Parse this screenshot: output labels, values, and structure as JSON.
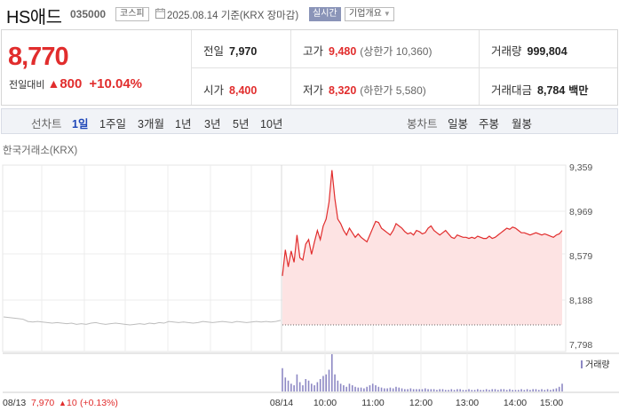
{
  "header": {
    "name": "HS애드",
    "code": "035000",
    "market": "코스피",
    "date": "2025.08.14 기준(KRX 장마감)",
    "realtime_label": "실시간",
    "overview_label": "기업개요"
  },
  "summary": {
    "price": "8,770",
    "change_label": "전일대비",
    "change_value": "800",
    "change_pct": "+10.04%",
    "prev_close_label": "전일",
    "prev_close": "7,970",
    "high_label": "고가",
    "high": "9,480",
    "upper_limit": "(상한가 10,360)",
    "volume_label": "거래량",
    "volume": "999,804",
    "open_label": "시가",
    "open": "8,400",
    "low_label": "저가",
    "low": "8,320",
    "lower_limit": "(하한가 5,580)",
    "amount_label": "거래대금",
    "amount": "8,784",
    "amount_unit": "백만"
  },
  "toolbar": {
    "line_label": "선차트",
    "periods": [
      "1일",
      "1주일",
      "3개월",
      "1년",
      "3년",
      "5년",
      "10년"
    ],
    "active_period": "1일",
    "candle_label": "봉차트",
    "candle_periods": [
      "일봉",
      "주봉",
      "월봉"
    ]
  },
  "colors": {
    "up": "#e12d2d",
    "accent": "#1f47b8",
    "volume": "#8d88c4",
    "fill": "#fde3e3"
  },
  "chart_data": {
    "type": "line",
    "source_label": "한국거래소(KRX)",
    "y_ticks": [
      "9,359",
      "8,969",
      "8,579",
      "8,188",
      "7,798"
    ],
    "ylim": [
      7798,
      9359
    ],
    "x_ticks": [
      "08/14",
      "10:00",
      "11:00",
      "12:00",
      "13:00",
      "14:00",
      "15:00"
    ],
    "x_left_label": "08/13",
    "prev_info": {
      "price": "7,970",
      "arrow": "▲",
      "change": "10",
      "pct": "(+0.13%)"
    },
    "volume_legend": "거래량",
    "prev_day_series": [
      8040,
      8035,
      8030,
      8025,
      8020,
      8000,
      7995,
      8000,
      7995,
      7990,
      7985,
      7990,
      7985,
      7980,
      7985,
      7975,
      7980,
      7975,
      7985,
      7990,
      7980,
      7975,
      7980,
      7985,
      7980,
      7975,
      7970,
      7975,
      7980,
      7975,
      7985,
      7980,
      7990,
      7985,
      8000,
      7995,
      7990,
      7995,
      7990,
      7985,
      7990,
      8000,
      7995,
      7990,
      7995,
      8000,
      7995,
      7990,
      8000,
      7995,
      7990,
      7995,
      8000,
      7995,
      8000,
      7995,
      8000,
      8010
    ],
    "today_series": [
      8400,
      8630,
      8480,
      8620,
      8520,
      8760,
      8560,
      8540,
      8680,
      8720,
      8590,
      8700,
      8800,
      8720,
      8840,
      8900,
      9050,
      9330,
      9080,
      8900,
      8860,
      8800,
      8760,
      8820,
      8780,
      8740,
      8770,
      8740,
      8720,
      8700,
      8760,
      8820,
      8880,
      8870,
      8820,
      8800,
      8780,
      8760,
      8800,
      8860,
      8840,
      8820,
      8790,
      8770,
      8780,
      8760,
      8800,
      8790,
      8770,
      8780,
      8820,
      8840,
      8800,
      8780,
      8760,
      8780,
      8800,
      8770,
      8740,
      8730,
      8760,
      8750,
      8740,
      8740,
      8730,
      8740,
      8730,
      8750,
      8740,
      8730,
      8730,
      8750,
      8730,
      8740,
      8760,
      8780,
      8800,
      8820,
      8810,
      8830,
      8820,
      8800,
      8780,
      8780,
      8770,
      8760,
      8770,
      8780,
      8770,
      8760,
      8770,
      8760,
      8750,
      8740,
      8760,
      8770,
      8800
    ],
    "today_volume": [
      30,
      18,
      14,
      10,
      8,
      22,
      12,
      8,
      16,
      14,
      10,
      8,
      12,
      16,
      20,
      22,
      28,
      48,
      22,
      14,
      10,
      8,
      6,
      10,
      8,
      6,
      5,
      5,
      4,
      6,
      8,
      10,
      8,
      6,
      5,
      4,
      4,
      5,
      4,
      6,
      5,
      4,
      3,
      3,
      4,
      3,
      3,
      3,
      3,
      4,
      3,
      3,
      3,
      2,
      3,
      3,
      2,
      2,
      3,
      2,
      3,
      3,
      2,
      2,
      3,
      2,
      2,
      3,
      2,
      2,
      3,
      2,
      3,
      3,
      2,
      3,
      3,
      2,
      3,
      2,
      2,
      2,
      3,
      2,
      3,
      2,
      3,
      3,
      2,
      3,
      2,
      3,
      2,
      3,
      4,
      6,
      10
    ]
  }
}
